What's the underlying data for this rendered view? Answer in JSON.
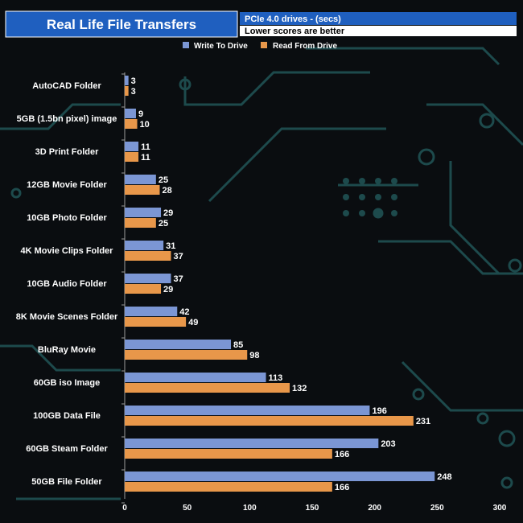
{
  "header": {
    "title": "Real Life File Transfers",
    "subtitle": "PCIe 4.0 drives - (secs)",
    "note": "Lower scores are better"
  },
  "colors": {
    "background": "#0a0d10",
    "title_bar": "#1f5fbf",
    "write": "#7b96d4",
    "read": "#e8974a",
    "circuit": "#1d4a4c"
  },
  "chart_data": {
    "type": "bar",
    "orientation": "horizontal",
    "title": "Real Life File Transfers",
    "subtitle": "PCIe 4.0 drives - (secs)",
    "note": "Lower scores are better",
    "categories": [
      "AutoCAD Folder",
      "5GB (1.5bn pixel) image",
      "3D Print Folder",
      "12GB Movie Folder",
      "10GB Photo Folder",
      "4K Movie Clips Folder",
      "10GB Audio Folder",
      "8K Movie Scenes Folder",
      "BluRay Movie",
      "60GB iso Image",
      "100GB Data File",
      "60GB Steam Folder",
      "50GB File Folder"
    ],
    "series": [
      {
        "name": "Write To  Drive",
        "color": "#7b96d4",
        "values": [
          3,
          9,
          11,
          25,
          29,
          31,
          37,
          42,
          85,
          113,
          196,
          203,
          248
        ]
      },
      {
        "name": "Read From  Drive",
        "color": "#e8974a",
        "values": [
          3,
          10,
          11,
          28,
          25,
          37,
          29,
          49,
          98,
          132,
          231,
          166,
          166
        ]
      }
    ],
    "xlim": [
      0,
      300
    ],
    "xticks": [
      0,
      50,
      100,
      150,
      200,
      250,
      300
    ],
    "legend": "top",
    "grid": false
  }
}
